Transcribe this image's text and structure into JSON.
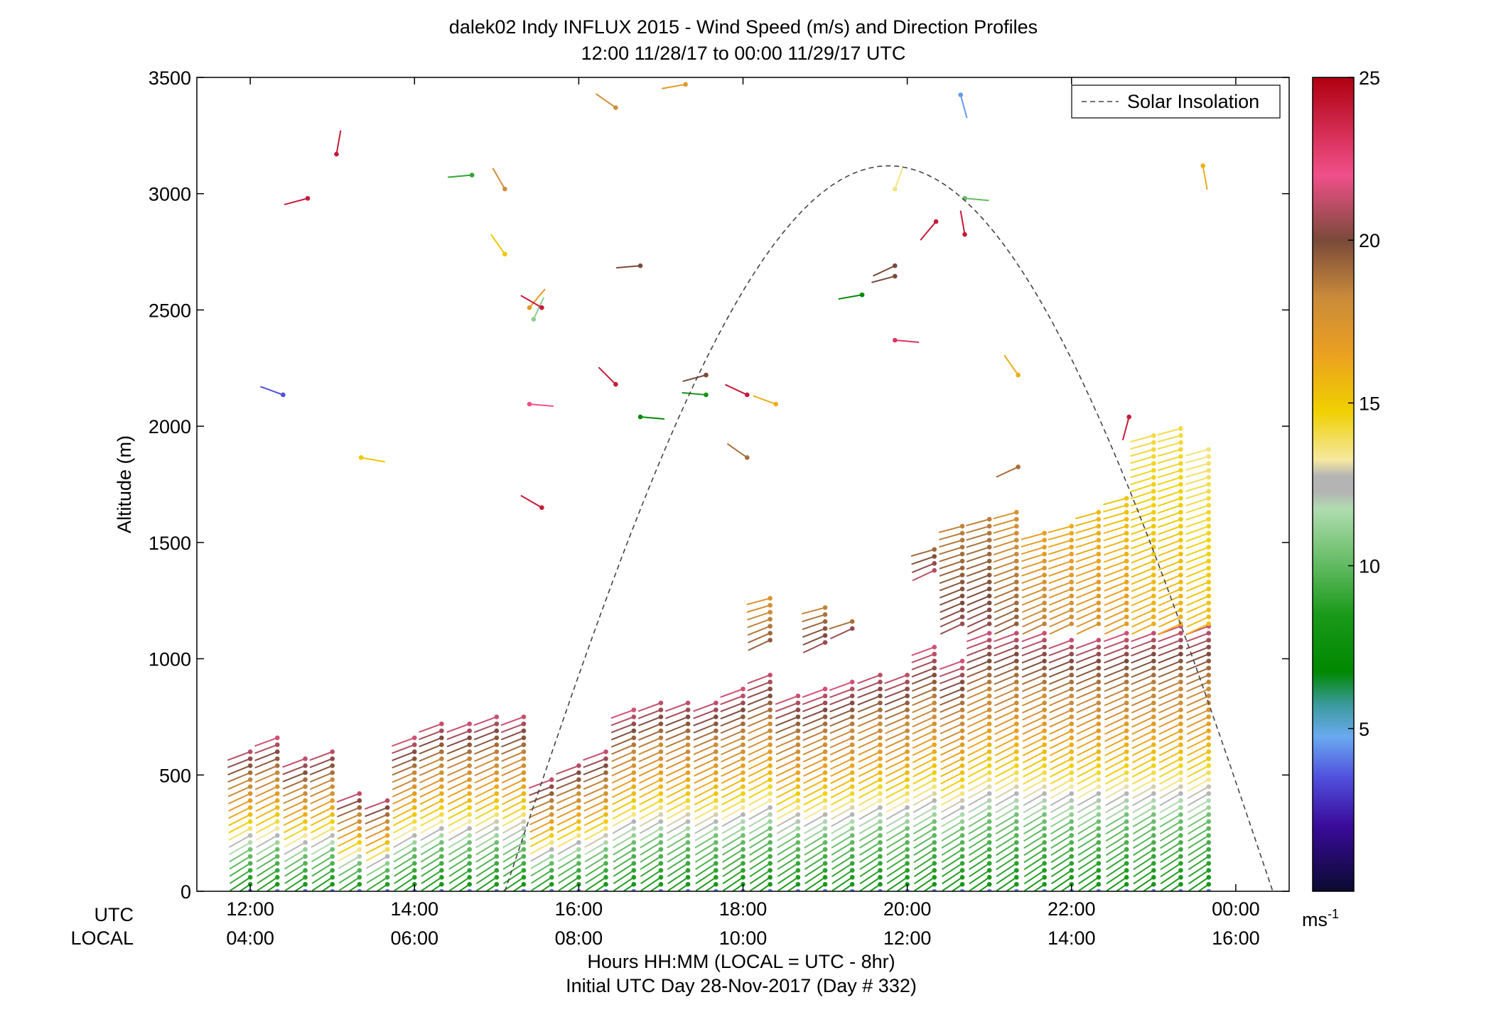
{
  "chart_data": {
    "type": "scatter",
    "title": "dalek02 Indy INFLUX 2015 - Wind Speed (m/s) and Direction Profiles",
    "subtitle": "12:00 11/28/17 to 00:00 11/29/17  UTC",
    "xlabel": "Hours HH:MM  (LOCAL = UTC - 8hr)",
    "xlabel2": "Initial UTC Day 28-Nov-2017 (Day # 332)",
    "ylabel": "Altitude (m)",
    "xlim_hours": [
      11.35,
      24.65
    ],
    "ylim": [
      0,
      3500
    ],
    "utc_row_label": "UTC",
    "local_row_label": "LOCAL",
    "x_ticks_utc": [
      "12:00",
      "14:00",
      "16:00",
      "18:00",
      "20:00",
      "22:00",
      "00:00"
    ],
    "x_ticks_local": [
      "04:00",
      "06:00",
      "08:00",
      "10:00",
      "12:00",
      "14:00",
      "16:00"
    ],
    "x_tick_hours": [
      12,
      14,
      16,
      18,
      20,
      22,
      24
    ],
    "y_ticks": [
      0,
      500,
      1000,
      1500,
      2000,
      2500,
      3000,
      3500
    ],
    "colorbar": {
      "min": 0,
      "max": 25,
      "ticks": [
        5,
        10,
        15,
        20,
        25
      ],
      "unit_label": "ms",
      "unit_exponent": "-1"
    },
    "legend": {
      "label": "Solar Insolation",
      "placement": "top-right"
    },
    "solar_insolation": {
      "start_hour": 15.1,
      "end_hour": 24.45,
      "peak_altitude": 3120
    },
    "profile_times": [
      12.0,
      12.33,
      12.67,
      13.0,
      13.33,
      13.67,
      14.0,
      14.33,
      14.67,
      15.0,
      15.33,
      15.67,
      16.0,
      16.33,
      16.67,
      17.0,
      17.33,
      17.67,
      18.0,
      18.33,
      18.67,
      19.0,
      19.33,
      19.67,
      20.0,
      20.33,
      20.67,
      21.0,
      21.33,
      21.67,
      22.0,
      22.33,
      22.67,
      23.0,
      23.33,
      23.67
    ],
    "profile_top_m": [
      620,
      660,
      580,
      620,
      430,
      400,
      660,
      730,
      730,
      760,
      760,
      490,
      560,
      610,
      780,
      830,
      830,
      830,
      870,
      950,
      850,
      870,
      900,
      950,
      950,
      1050,
      990,
      1120,
      1130,
      1120,
      1100,
      1100,
      1110,
      1130,
      1140,
      1150
    ],
    "upper_profiles": [
      {
        "start_hour": 18.33,
        "bottom_m": 1080,
        "top_m": 1260,
        "speed": 19.5
      },
      {
        "start_hour": 19.0,
        "bottom_m": 1070,
        "top_m": 1220,
        "speed": 20.5
      },
      {
        "start_hour": 19.33,
        "bottom_m": 1130,
        "top_m": 1170,
        "speed": 20.5
      },
      {
        "start_hour": 20.33,
        "bottom_m": 1380,
        "top_m": 1480,
        "speed": 21.0
      },
      {
        "start_hour": 20.67,
        "bottom_m": 1150,
        "top_m": 1570,
        "speed": 20.5
      },
      {
        "start_hour": 21.0,
        "bottom_m": 1150,
        "top_m": 1620,
        "speed": 20.5
      },
      {
        "start_hour": 21.33,
        "bottom_m": 1150,
        "top_m": 1650,
        "speed": 19.5
      },
      {
        "start_hour": 21.67,
        "bottom_m": 1150,
        "top_m": 1550,
        "speed": 18.5
      },
      {
        "start_hour": 22.0,
        "bottom_m": 1150,
        "top_m": 1580,
        "speed": 18.0
      },
      {
        "start_hour": 22.33,
        "bottom_m": 1150,
        "top_m": 1650,
        "speed": 17.5
      },
      {
        "start_hour": 22.67,
        "bottom_m": 1150,
        "top_m": 1700,
        "speed": 17.0
      },
      {
        "start_hour": 23.0,
        "bottom_m": 1150,
        "top_m": 1980,
        "speed": 16.0
      },
      {
        "start_hour": 23.33,
        "bottom_m": 1150,
        "top_m": 2000,
        "speed": 16.0
      },
      {
        "start_hour": 23.67,
        "bottom_m": 1150,
        "top_m": 1910,
        "speed": 15.5
      }
    ],
    "scattered_points": [
      {
        "hour": 12.4,
        "alt": 2135,
        "speed": 3.5,
        "dir": 290
      },
      {
        "hour": 12.7,
        "alt": 2980,
        "speed": 24,
        "dir": 255
      },
      {
        "hour": 13.05,
        "alt": 3170,
        "speed": 24,
        "dir": 10
      },
      {
        "hour": 13.35,
        "alt": 1865,
        "speed": 15,
        "dir": 100
      },
      {
        "hour": 14.7,
        "alt": 3080,
        "speed": 9,
        "dir": 265
      },
      {
        "hour": 15.1,
        "alt": 3020,
        "speed": 18,
        "dir": 330
      },
      {
        "hour": 15.1,
        "alt": 2740,
        "speed": 15,
        "dir": 325
      },
      {
        "hour": 15.4,
        "alt": 2510,
        "speed": 17,
        "dir": 40
      },
      {
        "hour": 15.45,
        "alt": 2460,
        "speed": 11,
        "dir": 25
      },
      {
        "hour": 15.55,
        "alt": 2510,
        "speed": 24,
        "dir": 300
      },
      {
        "hour": 15.4,
        "alt": 2095,
        "speed": 22,
        "dir": 95
      },
      {
        "hour": 15.55,
        "alt": 1650,
        "speed": 24,
        "dir": 300
      },
      {
        "hour": 16.45,
        "alt": 3370,
        "speed": 18,
        "dir": 305
      },
      {
        "hour": 16.45,
        "alt": 2180,
        "speed": 24,
        "dir": 315
      },
      {
        "hour": 16.75,
        "alt": 2690,
        "speed": 20,
        "dir": 265
      },
      {
        "hour": 16.75,
        "alt": 2040,
        "speed": 7,
        "dir": 95
      },
      {
        "hour": 17.3,
        "alt": 3470,
        "speed": 17,
        "dir": 260
      },
      {
        "hour": 17.55,
        "alt": 2220,
        "speed": 20,
        "dir": 255
      },
      {
        "hour": 17.55,
        "alt": 2135,
        "speed": 8,
        "dir": 275
      },
      {
        "hour": 18.05,
        "alt": 2135,
        "speed": 24,
        "dir": 295
      },
      {
        "hour": 18.4,
        "alt": 2095,
        "speed": 16,
        "dir": 290
      },
      {
        "hour": 18.05,
        "alt": 1865,
        "speed": 19,
        "dir": 305
      },
      {
        "hour": 19.45,
        "alt": 2565,
        "speed": 7,
        "dir": 260
      },
      {
        "hour": 19.85,
        "alt": 3020,
        "speed": 13.5,
        "dir": 20
      },
      {
        "hour": 19.85,
        "alt": 2690,
        "speed": 20,
        "dir": 245
      },
      {
        "hour": 19.85,
        "alt": 2645,
        "speed": 20,
        "dir": 255
      },
      {
        "hour": 19.85,
        "alt": 2370,
        "speed": 23,
        "dir": 95
      },
      {
        "hour": 20.35,
        "alt": 2880,
        "speed": 24,
        "dir": 220
      },
      {
        "hour": 20.65,
        "alt": 3425,
        "speed": 4.5,
        "dir": 165
      },
      {
        "hour": 20.7,
        "alt": 2825,
        "speed": 24,
        "dir": 350
      },
      {
        "hour": 20.7,
        "alt": 2980,
        "speed": 10,
        "dir": 95
      },
      {
        "hour": 21.35,
        "alt": 2220,
        "speed": 16,
        "dir": 325
      },
      {
        "hour": 21.35,
        "alt": 1825,
        "speed": 19,
        "dir": 245
      },
      {
        "hour": 22.7,
        "alt": 2040,
        "speed": 24,
        "dir": 195
      },
      {
        "hour": 23.6,
        "alt": 3120,
        "speed": 16,
        "dir": 170
      }
    ]
  }
}
